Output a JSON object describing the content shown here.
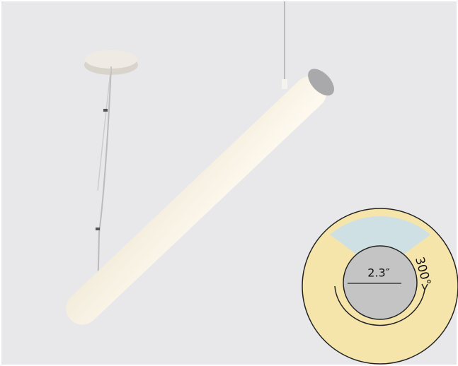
{
  "inset": {
    "diameter": "2.3″",
    "beam_angle": "300°"
  }
}
